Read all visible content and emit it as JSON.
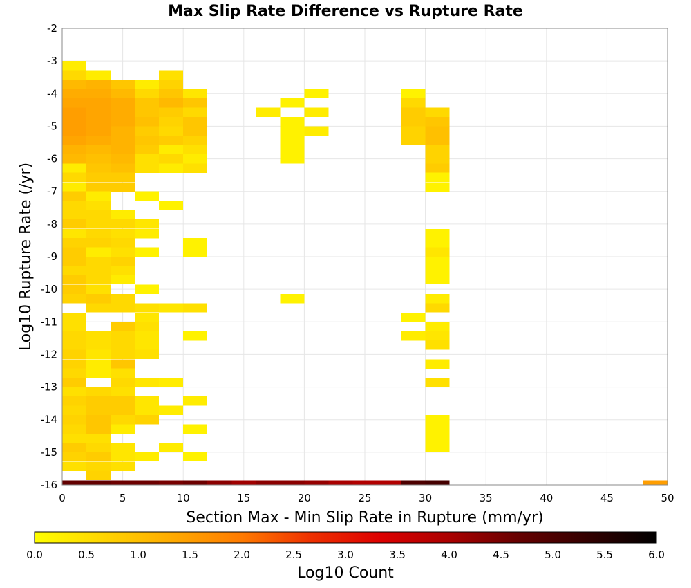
{
  "chart_data": {
    "type": "heatmap",
    "title": "Max Slip Rate Difference vs Rupture Rate",
    "xlabel": "Section Max - Min Slip Rate in Rupture (mm/yr)",
    "ylabel": "Log10 Rupture Rate (/yr)",
    "xlim": [
      0,
      50
    ],
    "ylim": [
      -16,
      -2
    ],
    "x_ticks": [
      "0",
      "5",
      "10",
      "15",
      "20",
      "25",
      "30",
      "35",
      "40",
      "45",
      "50"
    ],
    "y_ticks": [
      "-2",
      "-3",
      "-4",
      "-5",
      "-6",
      "-7",
      "-8",
      "-9",
      "-10",
      "-11",
      "-12",
      "-13",
      "-14",
      "-15",
      "-16"
    ],
    "x_bin_width": 2,
    "y_bin_width": 0.2857,
    "grid": true,
    "colorbar": {
      "label": "Log10 Count",
      "range": [
        0,
        6
      ],
      "ticks": [
        "0.0",
        "0.5",
        "1.0",
        "1.5",
        "2.0",
        "2.5",
        "3.0",
        "3.5",
        "4.0",
        "4.5",
        "5.0",
        "5.5",
        "6.0"
      ],
      "colors": [
        "#ffff00",
        "#ffd500",
        "#ffaa00",
        "#ff7a00",
        "#ee3000",
        "#dd0000",
        "#aa0000",
        "#660000",
        "#330000",
        "#000000"
      ]
    },
    "cells": [
      [
        0,
        -3.14,
        0.3
      ],
      [
        0,
        -3.43,
        0.6
      ],
      [
        2,
        -3.43,
        0.3
      ],
      [
        8,
        -3.43,
        0.5
      ],
      [
        0,
        -3.71,
        1.1
      ],
      [
        2,
        -3.71,
        1.2
      ],
      [
        4,
        -3.71,
        0.9
      ],
      [
        6,
        -3.71,
        0.3
      ],
      [
        8,
        -3.71,
        0.7
      ],
      [
        0,
        -4.0,
        1.3
      ],
      [
        2,
        -4.0,
        1.3
      ],
      [
        4,
        -4.0,
        1.1
      ],
      [
        6,
        -4.0,
        0.6
      ],
      [
        8,
        -4.0,
        0.9
      ],
      [
        10,
        -4.0,
        0.4
      ],
      [
        20,
        -4.0,
        0.2
      ],
      [
        28,
        -4.0,
        0.2
      ],
      [
        0,
        -4.29,
        1.4
      ],
      [
        2,
        -4.29,
        1.4
      ],
      [
        4,
        -4.29,
        1.3
      ],
      [
        6,
        -4.29,
        0.9
      ],
      [
        8,
        -4.29,
        1.1
      ],
      [
        10,
        -4.29,
        0.9
      ],
      [
        18,
        -4.29,
        0.2
      ],
      [
        28,
        -4.29,
        0.6
      ],
      [
        0,
        -4.57,
        1.5
      ],
      [
        2,
        -4.57,
        1.4
      ],
      [
        4,
        -4.57,
        1.3
      ],
      [
        6,
        -4.57,
        0.9
      ],
      [
        8,
        -4.57,
        0.8
      ],
      [
        10,
        -4.57,
        0.6
      ],
      [
        16,
        -4.57,
        0.3
      ],
      [
        20,
        -4.57,
        0.3
      ],
      [
        28,
        -4.57,
        0.8
      ],
      [
        30,
        -4.57,
        0.6
      ],
      [
        0,
        -4.86,
        1.5
      ],
      [
        2,
        -4.86,
        1.4
      ],
      [
        4,
        -4.86,
        1.3
      ],
      [
        6,
        -4.86,
        1.0
      ],
      [
        8,
        -4.86,
        0.7
      ],
      [
        10,
        -4.86,
        0.9
      ],
      [
        18,
        -4.86,
        0.2
      ],
      [
        28,
        -4.86,
        0.8
      ],
      [
        30,
        -4.86,
        0.9
      ],
      [
        0,
        -5.14,
        1.5
      ],
      [
        2,
        -5.14,
        1.4
      ],
      [
        4,
        -5.14,
        1.2
      ],
      [
        6,
        -5.14,
        0.8
      ],
      [
        8,
        -5.14,
        0.6
      ],
      [
        10,
        -5.14,
        0.9
      ],
      [
        18,
        -5.14,
        0.2
      ],
      [
        20,
        -5.14,
        0.3
      ],
      [
        28,
        -5.14,
        0.7
      ],
      [
        30,
        -5.14,
        1.0
      ],
      [
        0,
        -5.43,
        1.4
      ],
      [
        2,
        -5.43,
        1.3
      ],
      [
        4,
        -5.43,
        1.2
      ],
      [
        6,
        -5.43,
        0.9
      ],
      [
        8,
        -5.43,
        0.8
      ],
      [
        10,
        -5.43,
        0.7
      ],
      [
        18,
        -5.43,
        0.2
      ],
      [
        28,
        -5.43,
        0.7
      ],
      [
        30,
        -5.43,
        1.0
      ],
      [
        0,
        -5.71,
        1.2
      ],
      [
        2,
        -5.71,
        1.1
      ],
      [
        4,
        -5.71,
        1.2
      ],
      [
        6,
        -5.71,
        0.8
      ],
      [
        8,
        -5.71,
        0.3
      ],
      [
        10,
        -5.71,
        0.5
      ],
      [
        18,
        -5.71,
        0.2
      ],
      [
        30,
        -5.71,
        0.7
      ],
      [
        0,
        -6.0,
        1.1
      ],
      [
        2,
        -6.0,
        1.0
      ],
      [
        4,
        -6.0,
        1.1
      ],
      [
        6,
        -6.0,
        0.5
      ],
      [
        8,
        -6.0,
        0.6
      ],
      [
        10,
        -6.0,
        0.3
      ],
      [
        18,
        -6.0,
        0.2
      ],
      [
        30,
        -6.0,
        0.7
      ],
      [
        0,
        -6.29,
        0.3
      ],
      [
        2,
        -6.29,
        0.9
      ],
      [
        4,
        -6.29,
        1.0
      ],
      [
        6,
        -6.29,
        0.5
      ],
      [
        8,
        -6.29,
        0.3
      ],
      [
        10,
        -6.29,
        0.5
      ],
      [
        30,
        -6.29,
        0.8
      ],
      [
        0,
        -6.57,
        0.6
      ],
      [
        2,
        -6.57,
        0.8
      ],
      [
        4,
        -6.57,
        0.8
      ],
      [
        30,
        -6.57,
        0.2
      ],
      [
        0,
        -6.86,
        0.3
      ],
      [
        2,
        -6.86,
        0.8
      ],
      [
        4,
        -6.86,
        0.8
      ],
      [
        30,
        -6.86,
        0.2
      ],
      [
        0,
        -7.14,
        0.8
      ],
      [
        2,
        -7.14,
        0.3
      ],
      [
        6,
        -7.14,
        0.2
      ],
      [
        0,
        -7.43,
        0.6
      ],
      [
        2,
        -7.43,
        0.5
      ],
      [
        8,
        -7.43,
        0.2
      ],
      [
        0,
        -7.71,
        0.6
      ],
      [
        2,
        -7.71,
        0.6
      ],
      [
        4,
        -7.71,
        0.3
      ],
      [
        0,
        -8.0,
        0.8
      ],
      [
        2,
        -8.0,
        0.6
      ],
      [
        4,
        -8.0,
        0.6
      ],
      [
        6,
        -8.0,
        0.4
      ],
      [
        0,
        -8.29,
        0.4
      ],
      [
        2,
        -8.29,
        0.6
      ],
      [
        4,
        -8.29,
        0.5
      ],
      [
        6,
        -8.29,
        0.3
      ],
      [
        30,
        -8.29,
        0.2
      ],
      [
        0,
        -8.57,
        0.7
      ],
      [
        2,
        -8.57,
        0.7
      ],
      [
        4,
        -8.57,
        0.6
      ],
      [
        10,
        -8.57,
        0.2
      ],
      [
        30,
        -8.57,
        0.2
      ],
      [
        0,
        -8.86,
        0.8
      ],
      [
        2,
        -8.86,
        0.3
      ],
      [
        4,
        -8.86,
        0.5
      ],
      [
        6,
        -8.86,
        0.2
      ],
      [
        10,
        -8.86,
        0.2
      ],
      [
        30,
        -8.86,
        0.4
      ],
      [
        0,
        -9.14,
        0.8
      ],
      [
        2,
        -9.14,
        0.6
      ],
      [
        4,
        -9.14,
        0.7
      ],
      [
        30,
        -9.14,
        0.2
      ],
      [
        0,
        -9.43,
        0.6
      ],
      [
        2,
        -9.43,
        0.6
      ],
      [
        4,
        -9.43,
        0.5
      ],
      [
        30,
        -9.43,
        0.2
      ],
      [
        0,
        -9.71,
        0.8
      ],
      [
        2,
        -9.71,
        0.6
      ],
      [
        4,
        -9.71,
        0.3
      ],
      [
        30,
        -9.71,
        0.2
      ],
      [
        0,
        -10.0,
        0.8
      ],
      [
        2,
        -10.0,
        0.5
      ],
      [
        6,
        -10.0,
        0.2
      ],
      [
        0,
        -10.29,
        0.7
      ],
      [
        2,
        -10.29,
        0.8
      ],
      [
        4,
        -10.29,
        0.6
      ],
      [
        18,
        -10.29,
        0.2
      ],
      [
        30,
        -10.29,
        0.3
      ],
      [
        2,
        -10.57,
        0.6
      ],
      [
        4,
        -10.57,
        0.6
      ],
      [
        6,
        -10.57,
        0.5
      ],
      [
        8,
        -10.57,
        0.4
      ],
      [
        10,
        -10.57,
        0.5
      ],
      [
        30,
        -10.57,
        0.6
      ],
      [
        0,
        -10.86,
        0.5
      ],
      [
        6,
        -10.86,
        0.4
      ],
      [
        28,
        -10.86,
        0.2
      ],
      [
        0,
        -11.14,
        0.5
      ],
      [
        4,
        -11.14,
        0.8
      ],
      [
        6,
        -11.14,
        0.5
      ],
      [
        30,
        -11.14,
        0.3
      ],
      [
        0,
        -11.43,
        0.6
      ],
      [
        2,
        -11.43,
        0.5
      ],
      [
        4,
        -11.43,
        0.6
      ],
      [
        6,
        -11.43,
        0.4
      ],
      [
        10,
        -11.43,
        0.2
      ],
      [
        28,
        -11.43,
        0.3
      ],
      [
        30,
        -11.43,
        0.4
      ],
      [
        0,
        -11.71,
        0.6
      ],
      [
        2,
        -11.71,
        0.5
      ],
      [
        4,
        -11.71,
        0.6
      ],
      [
        6,
        -11.71,
        0.4
      ],
      [
        30,
        -11.71,
        0.5
      ],
      [
        0,
        -12.0,
        0.7
      ],
      [
        2,
        -12.0,
        0.4
      ],
      [
        4,
        -12.0,
        0.6
      ],
      [
        6,
        -12.0,
        0.5
      ],
      [
        0,
        -12.29,
        0.7
      ],
      [
        2,
        -12.29,
        0.3
      ],
      [
        4,
        -12.29,
        0.9
      ],
      [
        30,
        -12.29,
        0.3
      ],
      [
        0,
        -12.57,
        0.6
      ],
      [
        2,
        -12.57,
        0.3
      ],
      [
        4,
        -12.57,
        0.5
      ],
      [
        0,
        -12.86,
        0.8
      ],
      [
        4,
        -12.86,
        0.6
      ],
      [
        6,
        -12.86,
        0.4
      ],
      [
        8,
        -12.86,
        0.3
      ],
      [
        30,
        -12.86,
        0.5
      ],
      [
        0,
        -13.14,
        0.5
      ],
      [
        2,
        -13.14,
        0.6
      ],
      [
        4,
        -13.14,
        0.5
      ],
      [
        0,
        -13.43,
        0.7
      ],
      [
        2,
        -13.43,
        0.8
      ],
      [
        4,
        -13.43,
        0.8
      ],
      [
        6,
        -13.43,
        0.4
      ],
      [
        10,
        -13.43,
        0.3
      ],
      [
        0,
        -13.71,
        0.6
      ],
      [
        2,
        -13.71,
        0.8
      ],
      [
        4,
        -13.71,
        0.8
      ],
      [
        6,
        -13.71,
        0.4
      ],
      [
        8,
        -13.71,
        0.3
      ],
      [
        0,
        -14.0,
        0.7
      ],
      [
        2,
        -14.0,
        0.9
      ],
      [
        4,
        -14.0,
        0.6
      ],
      [
        6,
        -14.0,
        0.7
      ],
      [
        30,
        -14.0,
        0.2
      ],
      [
        0,
        -14.29,
        0.6
      ],
      [
        2,
        -14.29,
        0.9
      ],
      [
        4,
        -14.29,
        0.3
      ],
      [
        10,
        -14.29,
        0.2
      ],
      [
        30,
        -14.29,
        0.2
      ],
      [
        0,
        -14.57,
        0.5
      ],
      [
        2,
        -14.57,
        0.5
      ],
      [
        30,
        -14.57,
        0.2
      ],
      [
        0,
        -14.86,
        0.8
      ],
      [
        2,
        -14.86,
        0.6
      ],
      [
        4,
        -14.86,
        0.4
      ],
      [
        8,
        -14.86,
        0.3
      ],
      [
        30,
        -14.86,
        0.2
      ],
      [
        0,
        -15.14,
        0.7
      ],
      [
        2,
        -15.14,
        0.8
      ],
      [
        4,
        -15.14,
        0.4
      ],
      [
        6,
        -15.14,
        0.3
      ],
      [
        10,
        -15.14,
        0.2
      ],
      [
        0,
        -15.43,
        0.5
      ],
      [
        2,
        -15.43,
        0.6
      ],
      [
        4,
        -15.43,
        0.5
      ],
      [
        2,
        -15.71,
        0.7
      ],
      [
        0,
        -16.0,
        4.7
      ],
      [
        2,
        -16.0,
        4.7
      ],
      [
        4,
        -16.0,
        4.6
      ],
      [
        6,
        -16.0,
        4.6
      ],
      [
        8,
        -16.0,
        4.5
      ],
      [
        10,
        -16.0,
        4.6
      ],
      [
        12,
        -16.0,
        4.3
      ],
      [
        14,
        -16.0,
        4.1
      ],
      [
        16,
        -16.0,
        4.3
      ],
      [
        18,
        -16.0,
        4.3
      ],
      [
        20,
        -16.0,
        4.2
      ],
      [
        22,
        -16.0,
        4.0
      ],
      [
        24,
        -16.0,
        3.9
      ],
      [
        26,
        -16.0,
        3.9
      ],
      [
        28,
        -16.0,
        5.0
      ],
      [
        30,
        -16.0,
        5.1
      ],
      [
        48,
        -16.0,
        1.5
      ]
    ]
  }
}
